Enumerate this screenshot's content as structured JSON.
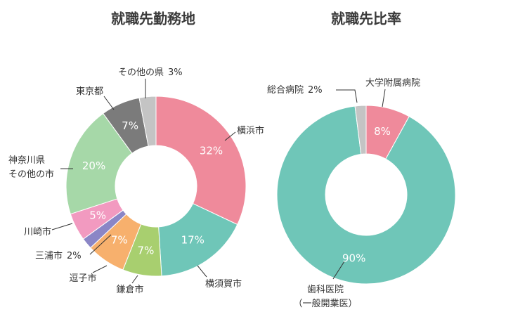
{
  "chart_data": [
    {
      "type": "donut",
      "title": "就職先勤務地",
      "categories": [
        [
          "横浜市"
        ],
        [
          "横須賀市"
        ],
        [
          "鎌倉市"
        ],
        [
          "逗子市"
        ],
        [
          "三浦市"
        ],
        [
          "川崎市"
        ],
        [
          "神奈川県",
          "その他の市"
        ],
        [
          "東京都"
        ],
        [
          "その他の県"
        ]
      ],
      "values": [
        32,
        17,
        7,
        7,
        2,
        5,
        20,
        7,
        3
      ],
      "value_labels": [
        "32%",
        "17%",
        "7%",
        "7%",
        "2%",
        "5%",
        "20%",
        "7%",
        "3%"
      ],
      "colors": [
        "#ef8a9b",
        "#6fc6b8",
        "#a8cf6f",
        "#f7b06d",
        "#8b86c6",
        "#f29ac0",
        "#a6d8a8",
        "#7b7b7b",
        "#c4c4c4"
      ]
    },
    {
      "type": "donut",
      "title": "就職先比率",
      "categories": [
        [
          "大学附属病院"
        ],
        [
          "歯科医院",
          "（一般開業医）"
        ],
        [
          "総合病院"
        ]
      ],
      "values": [
        8,
        90,
        2
      ],
      "value_labels": [
        "8%",
        "90%",
        "2%"
      ],
      "colors": [
        "#ef8a9b",
        "#6fc6b8",
        "#c4c4c4"
      ]
    }
  ]
}
